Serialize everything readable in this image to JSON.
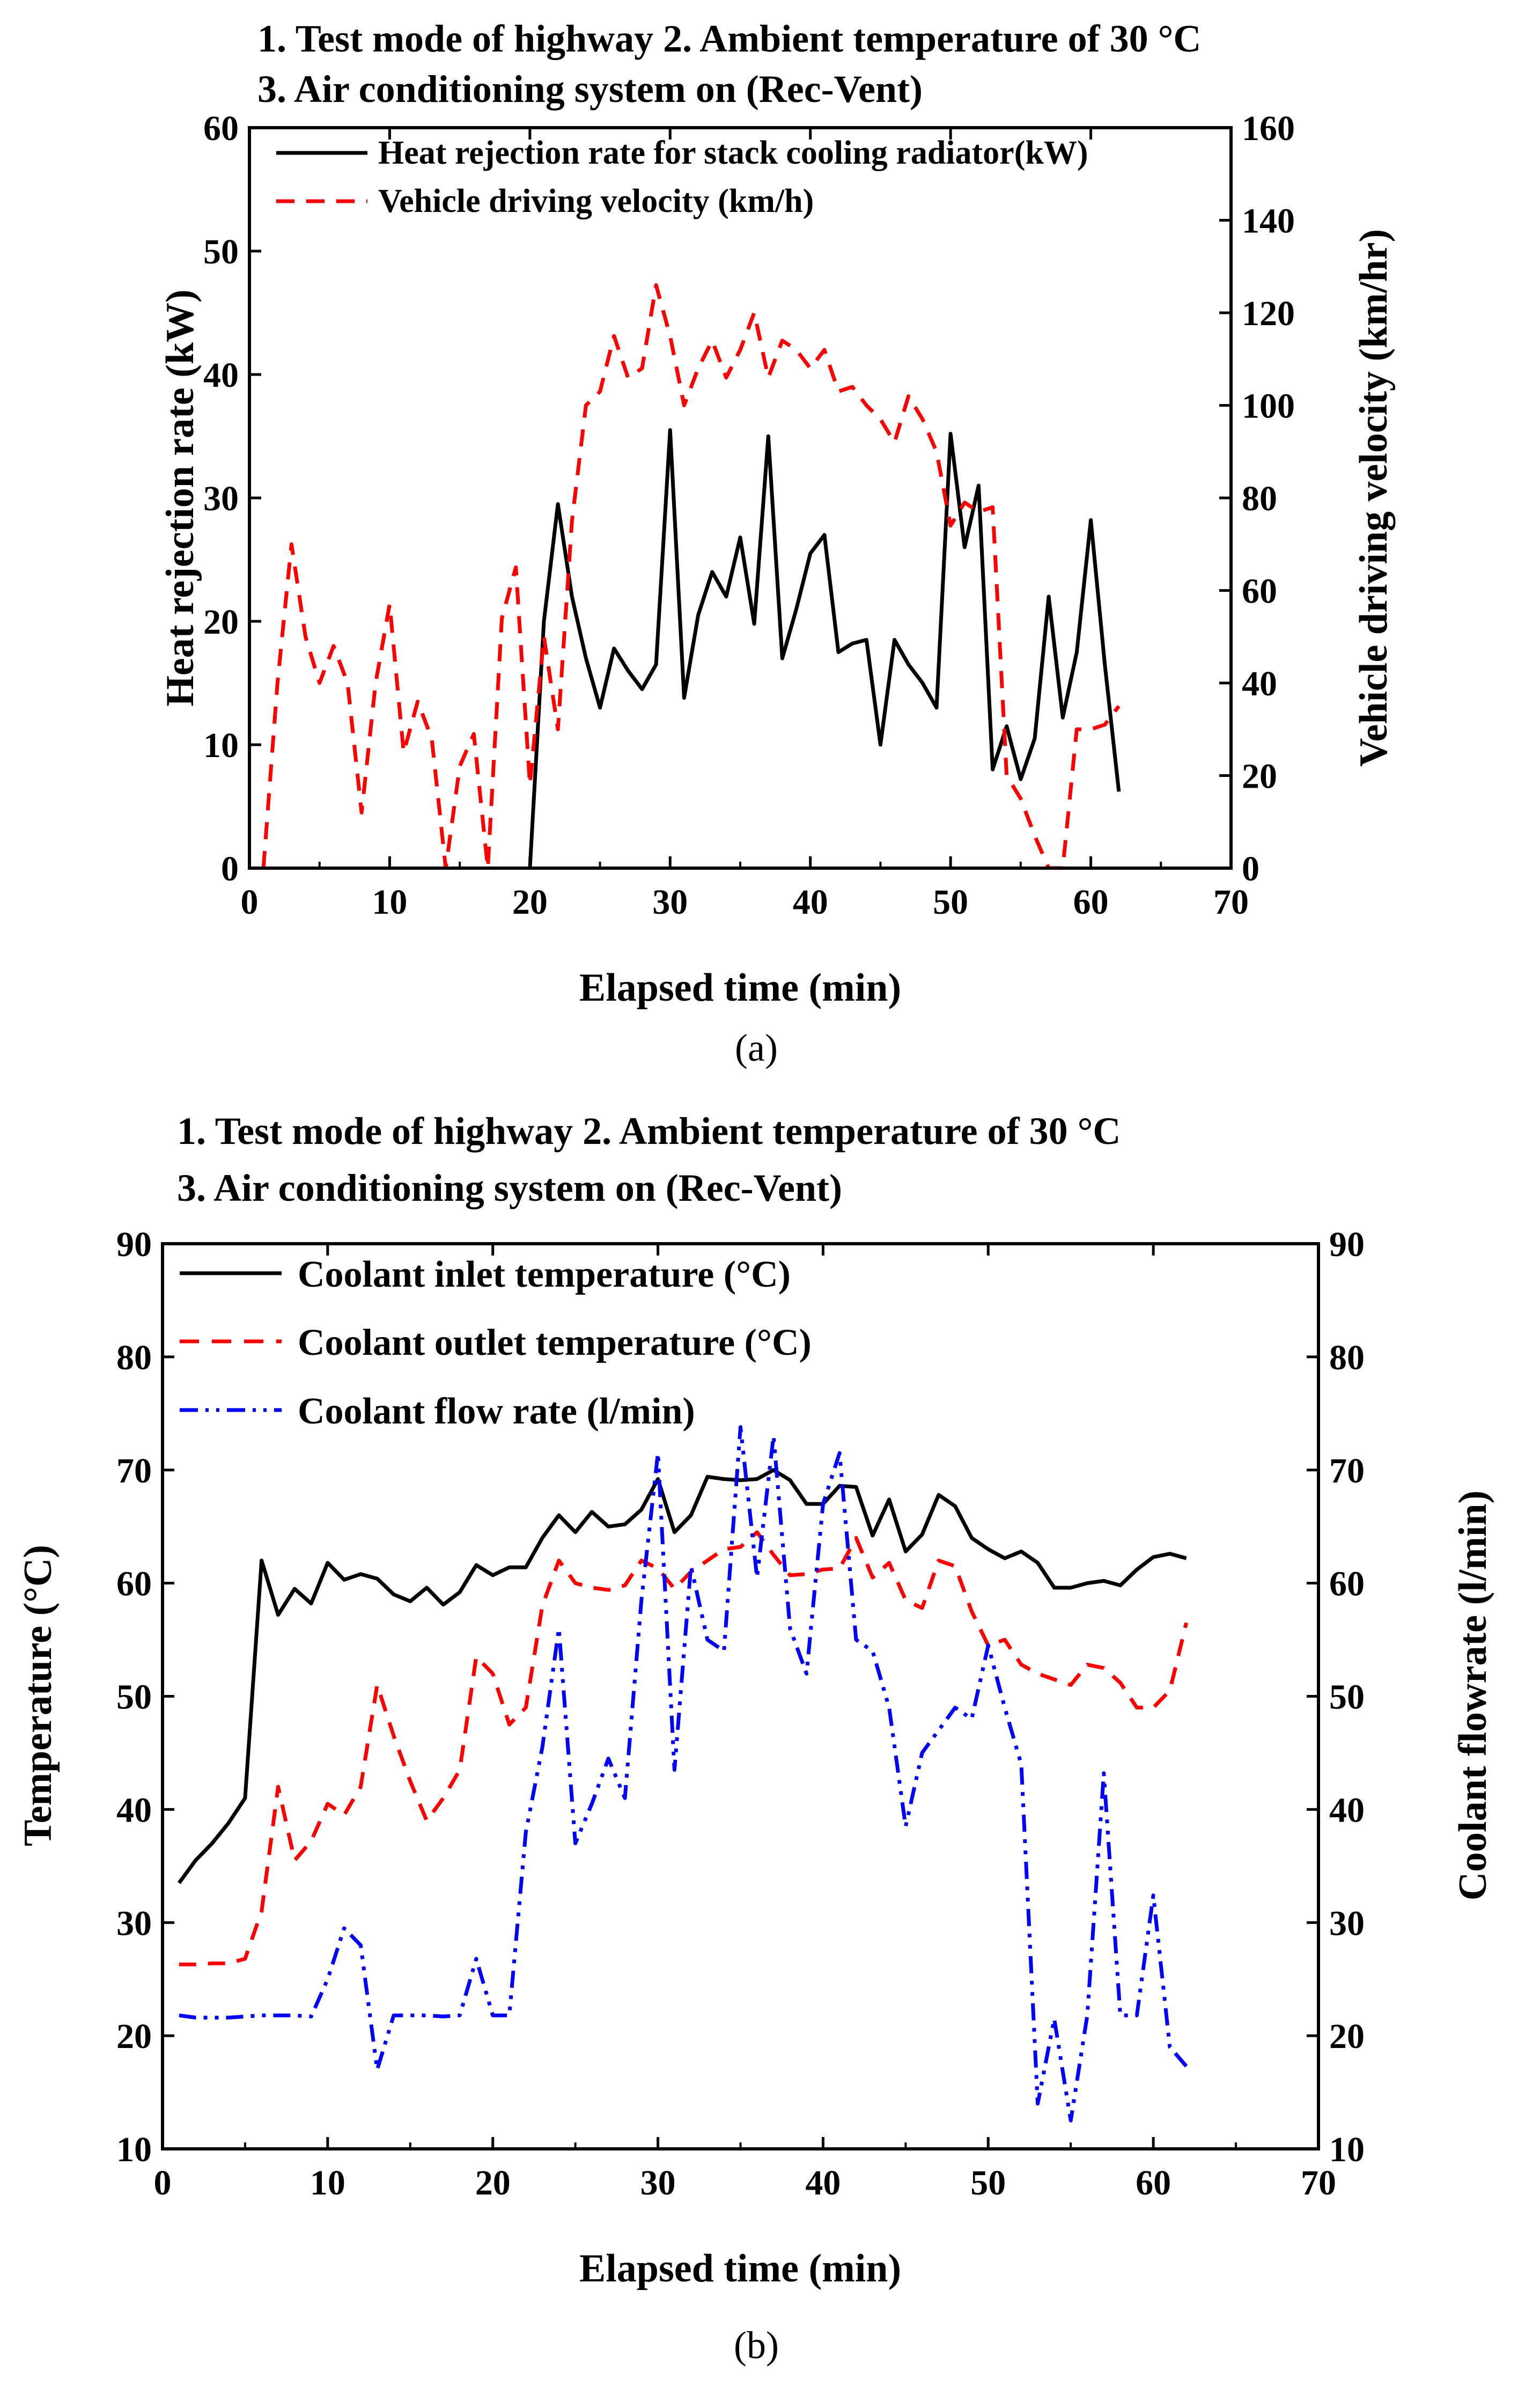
{
  "chart_data": [
    {
      "type": "line",
      "panel_label": "(a)",
      "header_lines": [
        "1. Test mode of highway    2. Ambient temperature of 30 °C",
        "3. Air conditioning system on (Rec-Vent)"
      ],
      "xlabel": "Elapsed time (min)",
      "ylabel": "Heat rejection rate (kW)",
      "y2label": "Vehicle driving velocity (km/hr)",
      "xlim": [
        0,
        70
      ],
      "ylim": [
        0,
        60
      ],
      "y2lim": [
        0,
        160
      ],
      "x_ticks": [
        0,
        10,
        20,
        30,
        40,
        50,
        60,
        70
      ],
      "y_ticks": [
        0,
        10,
        20,
        30,
        40,
        50,
        60
      ],
      "y2_ticks": [
        0,
        20,
        40,
        60,
        80,
        100,
        120,
        140,
        160
      ],
      "legend_position": "top",
      "series": [
        {
          "name": "Heat rejection rate for stack cooling radiator(kW)",
          "axis": "left",
          "color": "#000000",
          "style": "solid",
          "x": [
            20,
            21,
            22,
            23,
            24,
            25,
            26,
            27,
            28,
            29,
            30,
            31,
            32,
            33,
            34,
            35,
            36,
            37,
            38,
            39,
            40,
            41,
            42,
            43,
            44,
            45,
            46,
            47,
            48,
            49,
            50,
            51,
            52,
            53,
            54,
            55,
            56,
            57,
            58,
            59,
            60,
            61,
            62
          ],
          "y": [
            0,
            20,
            29.5,
            22,
            17,
            13,
            17.8,
            16,
            14.5,
            16.5,
            35.5,
            13.8,
            20.5,
            24,
            22,
            26.8,
            19.8,
            35,
            17,
            21,
            25.5,
            27,
            17.5,
            18.2,
            18.5,
            10,
            18.5,
            16.5,
            15,
            13,
            35.2,
            26,
            31,
            8,
            11.5,
            7.2,
            10.5,
            22,
            12.2,
            17.5,
            28.2,
            16.5,
            6.2
          ]
        },
        {
          "name": "Vehicle driving velocity (km/h)",
          "axis": "right",
          "color": "#ff0000",
          "style": "dashed",
          "x": [
            1,
            2,
            3,
            4,
            5,
            6,
            7,
            8,
            9,
            10,
            11,
            12,
            13,
            14,
            15,
            16,
            17,
            18,
            19,
            20,
            21,
            22,
            23,
            24,
            25,
            26,
            27,
            28,
            29,
            30,
            31,
            32,
            33,
            34,
            35,
            36,
            37,
            38,
            39,
            40,
            41,
            42,
            43,
            44,
            45,
            46,
            47,
            48,
            49,
            50,
            51,
            52,
            53,
            54,
            55,
            56,
            57,
            58,
            59,
            60,
            61,
            62
          ],
          "y": [
            0,
            40,
            70,
            50,
            40,
            48,
            40,
            12,
            40,
            57,
            25,
            36,
            28,
            0,
            22,
            29,
            0,
            54,
            65,
            18,
            50,
            30,
            75,
            100,
            103,
            115,
            106,
            108,
            126,
            115,
            100,
            108,
            114,
            106,
            112,
            120,
            106,
            114,
            112,
            108,
            112,
            103,
            104,
            100,
            97,
            92,
            102,
            97,
            90,
            74,
            79,
            77,
            78,
            20,
            15,
            7,
            0,
            0,
            30,
            30,
            31,
            35
          ]
        }
      ]
    },
    {
      "type": "line",
      "panel_label": "(b)",
      "header_lines": [
        "1. Test mode of highway       2. Ambient temperature of 30 °C",
        "3. Air conditioning system on (Rec-Vent)"
      ],
      "xlabel": "Elapsed time (min)",
      "ylabel": "Temperature (°C)",
      "y2label": "Coolant flowrate (l/min)",
      "xlim": [
        0,
        70
      ],
      "ylim": [
        10,
        90
      ],
      "y2lim": [
        10,
        90
      ],
      "x_ticks": [
        0,
        10,
        20,
        30,
        40,
        50,
        60,
        70
      ],
      "y_ticks": [
        10,
        20,
        30,
        40,
        50,
        60,
        70,
        80,
        90
      ],
      "y2_ticks": [
        10,
        20,
        30,
        40,
        50,
        60,
        70,
        80,
        90
      ],
      "legend_position": "top-left",
      "series": [
        {
          "name": "Coolant inlet temperature (°C)",
          "axis": "left",
          "color": "#000000",
          "style": "solid",
          "x": [
            1,
            2,
            3,
            4,
            5,
            6,
            7,
            8,
            9,
            10,
            11,
            12,
            13,
            14,
            15,
            16,
            17,
            18,
            19,
            20,
            21,
            22,
            23,
            24,
            25,
            26,
            27,
            28,
            29,
            30,
            31,
            32,
            33,
            34,
            35,
            36,
            37,
            38,
            39,
            40,
            41,
            42,
            43,
            44,
            45,
            46,
            47,
            48,
            49,
            50,
            51,
            52,
            53,
            54,
            55,
            56,
            57,
            58,
            59,
            60,
            61,
            62
          ],
          "y": [
            33.5,
            35.5,
            37,
            38.8,
            41,
            62,
            57.2,
            59.5,
            58.2,
            61.8,
            60.3,
            60.8,
            60.4,
            59,
            58.4,
            59.6,
            58.1,
            59.2,
            61.6,
            60.7,
            61.4,
            61.4,
            64,
            66,
            64.5,
            66.3,
            65,
            65.2,
            66.5,
            69.2,
            64.5,
            66,
            69.4,
            69.2,
            69.1,
            69.2,
            70,
            69.1,
            67,
            67,
            68.6,
            68.5,
            64.2,
            67.4,
            62.8,
            64.3,
            67.8,
            66.8,
            64,
            63,
            62.2,
            62.8,
            61.8,
            59.6,
            59.6,
            60,
            60.2,
            59.8,
            61.2,
            62.3,
            62.6,
            62.2
          ]
        },
        {
          "name": "Coolant outlet temperature (°C)",
          "axis": "left",
          "color": "#ff0000",
          "style": "dashed",
          "x": [
            1,
            2,
            3,
            4,
            5,
            6,
            7,
            8,
            9,
            10,
            11,
            12,
            13,
            14,
            15,
            16,
            17,
            18,
            19,
            20,
            21,
            22,
            23,
            24,
            25,
            26,
            27,
            28,
            29,
            30,
            31,
            32,
            33,
            34,
            35,
            36,
            37,
            38,
            39,
            40,
            41,
            42,
            43,
            44,
            45,
            46,
            47,
            48,
            49,
            50,
            51,
            52,
            53,
            54,
            55,
            56,
            57,
            58,
            59,
            60,
            61,
            62
          ],
          "y": [
            26.3,
            26.3,
            26.4,
            26.4,
            26.8,
            31,
            42,
            35.5,
            37.2,
            40.5,
            39.5,
            42,
            51,
            46.5,
            42.5,
            39,
            41,
            43.5,
            53.5,
            52,
            47.5,
            49,
            58,
            62,
            60,
            59.6,
            59.4,
            59.8,
            62,
            61.3,
            59.5,
            61,
            62,
            63,
            63.2,
            64.5,
            62.5,
            60.7,
            60.8,
            61.2,
            61.3,
            64,
            60.5,
            61.8,
            58.5,
            57.8,
            62,
            61.5,
            57.5,
            54.5,
            55,
            52.8,
            52,
            51.5,
            51,
            52.8,
            52.5,
            51.2,
            49,
            49,
            50.5,
            56.5
          ]
        },
        {
          "name": "Coolant flow rate (l/min)",
          "axis": "right",
          "color": "#0000ff",
          "style": "dash-dot-dot",
          "x": [
            1,
            2,
            3,
            4,
            5,
            6,
            7,
            8,
            9,
            10,
            11,
            12,
            13,
            14,
            15,
            16,
            17,
            18,
            19,
            20,
            21,
            22,
            23,
            24,
            25,
            26,
            27,
            28,
            29,
            30,
            31,
            32,
            33,
            34,
            35,
            36,
            37,
            38,
            39,
            40,
            41,
            42,
            43,
            44,
            45,
            46,
            47,
            48,
            49,
            50,
            51,
            52,
            53,
            54,
            55,
            56,
            57,
            58,
            59,
            60,
            61,
            62
          ],
          "y": [
            21.8,
            21.6,
            21.6,
            21.6,
            21.7,
            21.8,
            21.8,
            21.8,
            21.7,
            25,
            29.5,
            28,
            17,
            21.8,
            21.8,
            21.8,
            21.7,
            21.8,
            26.8,
            21.8,
            21.8,
            38,
            45.5,
            56,
            37,
            40.5,
            44.5,
            41,
            58.5,
            71.5,
            43.5,
            61.5,
            55,
            54,
            73.8,
            60.5,
            73,
            56,
            52,
            67,
            71.5,
            55,
            54,
            49,
            38.5,
            45,
            47,
            49,
            48,
            54.5,
            49,
            44,
            14,
            21.5,
            12.5,
            21.8,
            43.2,
            21.8,
            21.8,
            32.4,
            19,
            17.3
          ]
        }
      ]
    }
  ]
}
